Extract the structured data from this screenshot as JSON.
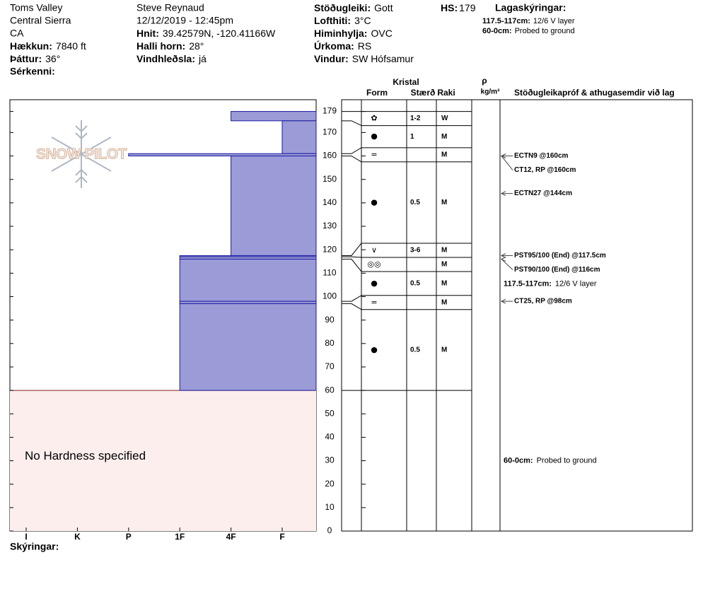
{
  "header": {
    "location": [
      "Toms Valley",
      "Central Sierra",
      "CA"
    ],
    "elevation": {
      "label": "Hækkun:",
      "value": "7840 ft"
    },
    "aspect": {
      "label": "Þáttur:",
      "value": "36°"
    },
    "features": {
      "label": "Sérkenni:"
    },
    "observer": "Steve Reynaud",
    "datetime": "12/12/2019 - 12:45pm",
    "coords": {
      "label": "Hnit:",
      "value": "39.42579N, -120.41166W"
    },
    "slope": {
      "label": "Halli horn:",
      "value": "28°"
    },
    "wind_loading": {
      "label": "Vindhleðsla:",
      "value": "já"
    },
    "stability": {
      "label": "Stöðugleiki:",
      "value": "Gott"
    },
    "air_temp": {
      "label": "Lofthiti:",
      "value": "3°C"
    },
    "sky": {
      "label": "Himinhylja:",
      "value": "OVC"
    },
    "precip": {
      "label": "Úrkoma:",
      "value": "RS"
    },
    "wind": {
      "label": "Vindur:",
      "value": "SW Hófsamur"
    },
    "hs": {
      "label": "HS:",
      "value": "179"
    },
    "notes_title": "Lagaskýringar:",
    "notes": [
      {
        "label": "117.5-117cm:",
        "text": "12/6 V layer"
      },
      {
        "label": "60-0cm:",
        "text": "Probed to ground"
      }
    ]
  },
  "logo": "SNOW PILOT",
  "chart_data": {
    "type": "hardness_profile",
    "ylim": [
      0,
      184
    ],
    "yticks": [
      0,
      10,
      20,
      30,
      40,
      50,
      60,
      70,
      80,
      90,
      100,
      110,
      120,
      130,
      140,
      150,
      160,
      170,
      179
    ],
    "hardness_scale": [
      "I",
      "K",
      "P",
      "1F",
      "4F",
      "F"
    ],
    "color": "#9b9bd7",
    "layers": [
      {
        "top": 179,
        "bottom": 175,
        "hardness": "4F",
        "form": "✿",
        "size": "1-2",
        "moisture": "W"
      },
      {
        "top": 175,
        "bottom": 161,
        "hardness": "F",
        "form": "●",
        "size": "1",
        "moisture": "M"
      },
      {
        "top": 161,
        "bottom": 160,
        "hardness": "P",
        "form": "=",
        "moisture": "M"
      },
      {
        "top": 160,
        "bottom": 117.5,
        "hardness": "4F",
        "form": "●",
        "size": "0.5",
        "moisture": "M"
      },
      {
        "top": 117.5,
        "bottom": 117,
        "hardness": "1F",
        "form": "∨",
        "size": "3-6",
        "moisture": "M"
      },
      {
        "top": 117,
        "bottom": 116,
        "hardness": "1F",
        "form": "◎◎",
        "moisture": "M"
      },
      {
        "top": 116,
        "bottom": 98,
        "hardness": "1F",
        "form": "●",
        "size": "0.5",
        "moisture": "M"
      },
      {
        "top": 98,
        "bottom": 97,
        "hardness": "1F",
        "form": "=",
        "moisture": "M"
      },
      {
        "top": 97,
        "bottom": 60,
        "hardness": "1F",
        "form": "●",
        "size": "0.5",
        "moisture": "M"
      }
    ],
    "unspecified": {
      "top": 60,
      "bottom": 0,
      "label": "No Hardness specified"
    }
  },
  "table_header": {
    "crystal": "Kristal",
    "form": "Form",
    "size": "Stærð",
    "moisture": "Raki",
    "density": "ρ",
    "density_unit": "kg/m³",
    "comments": "Stöðugleikapróf & athugasemdir við lag"
  },
  "comments": [
    {
      "text": "ECTN9 @160cm",
      "depth": 160
    },
    {
      "text": "CT12, RP @160cm",
      "depth": 160
    },
    {
      "text": "ECTN27 @144cm",
      "depth": 144
    },
    {
      "text": "PST95/100 (End) @117.5cm",
      "depth": 117.5
    },
    {
      "text": "PST90/100 (End) @116cm",
      "depth": 116
    },
    {
      "label": "117.5-117cm:",
      "text": "12/6 V layer",
      "top": 117.5,
      "bottom": 117
    },
    {
      "text": "CT25, RP @98cm",
      "depth": 98
    },
    {
      "label": "60-0cm:",
      "text": "Probed to ground",
      "top": 60,
      "bottom": 0
    }
  ],
  "legend_title": "Skýringar:"
}
